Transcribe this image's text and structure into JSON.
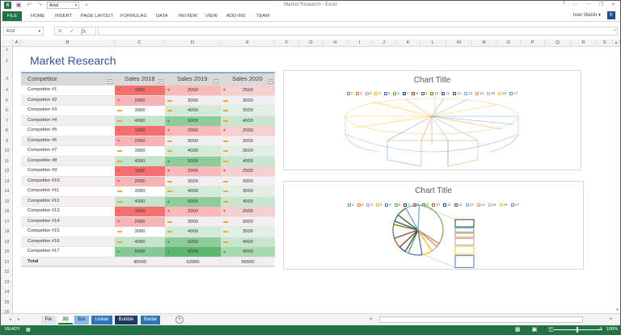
{
  "window": {
    "title": "Market Research - Excel",
    "controls": [
      "?",
      "▭",
      "—",
      "❐",
      "✕"
    ]
  },
  "qat": {
    "font_name": "Arial"
  },
  "ribbon": {
    "tabs": [
      "FILE",
      "HOME",
      "INSERT",
      "PAGE LAYOUT",
      "FORMULAS",
      "DATA",
      "REVIEW",
      "VIEW",
      "ADD-INS",
      "TEAM"
    ],
    "user_name": "Ivan Walsh",
    "user_initial": "K"
  },
  "formula_bar": {
    "name_box": "R19",
    "formula": ""
  },
  "columns": [
    "A",
    "B",
    "C",
    "D",
    "E",
    "F",
    "G",
    "H",
    "I",
    "J",
    "K",
    "L",
    "M",
    "N",
    "O",
    "P",
    "Q",
    "R",
    "S"
  ],
  "rows": [
    "1",
    "2",
    "3",
    "4",
    "5",
    "6",
    "7",
    "8",
    "9",
    "10",
    "11",
    "12",
    "13",
    "14",
    "15",
    "16",
    "17",
    "18",
    "19",
    "20",
    "21",
    "22",
    "23",
    "24",
    "25",
    "26"
  ],
  "sheet": {
    "title": "Market Research",
    "headers": [
      "Competitor",
      "Sales 2018",
      "Sales 2019",
      "Sales 2020"
    ],
    "data": [
      {
        "name": "Competitor #1",
        "v": [
          "1000",
          "2000",
          "2500"
        ]
      },
      {
        "name": "Competitor #2",
        "v": [
          "2000",
          "3000",
          "3000"
        ]
      },
      {
        "name": "Competitor #3",
        "v": [
          "3000",
          "4000",
          "3500"
        ]
      },
      {
        "name": "Competitor #4",
        "v": [
          "4000",
          "5000",
          "4000"
        ]
      },
      {
        "name": "Competitor #5",
        "v": [
          "1000",
          "2000",
          "2500"
        ]
      },
      {
        "name": "Competitor #6",
        "v": [
          "2000",
          "3000",
          "3000"
        ]
      },
      {
        "name": "Competitor #7",
        "v": [
          "3000",
          "4000",
          "3500"
        ]
      },
      {
        "name": "Competitor #8",
        "v": [
          "4000",
          "5000",
          "4000"
        ]
      },
      {
        "name": "Competitor #9",
        "v": [
          "1000",
          "2000",
          "2500"
        ]
      },
      {
        "name": "Competitor #10",
        "v": [
          "2000",
          "3000",
          "3000"
        ]
      },
      {
        "name": "Competitor #11",
        "v": [
          "3000",
          "4000",
          "3500"
        ]
      },
      {
        "name": "Competitor #12",
        "v": [
          "4000",
          "5000",
          "4000"
        ]
      },
      {
        "name": "Competitor #13",
        "v": [
          "1000",
          "2000",
          "2500"
        ]
      },
      {
        "name": "Competitor #14",
        "v": [
          "2000",
          "3000",
          "3000"
        ]
      },
      {
        "name": "Competitor #15",
        "v": [
          "3000",
          "4000",
          "3500"
        ]
      },
      {
        "name": "Competitor #16",
        "v": [
          "4000",
          "5000",
          "4000"
        ]
      },
      {
        "name": "Competitor #17",
        "v": [
          "5000",
          "6000",
          "4500"
        ]
      }
    ],
    "total": {
      "label": "Total",
      "v": [
        "45000",
        "62000",
        "56500"
      ]
    }
  },
  "charts": [
    {
      "title": "Chart Title",
      "type": "3d-pie-wireframe",
      "legend": [
        "1",
        "2",
        "3",
        "4",
        "5",
        "6",
        "7",
        "8",
        "9",
        "10",
        "11",
        "12",
        "13",
        "14",
        "15",
        "16",
        "17"
      ]
    },
    {
      "title": "Chart Title",
      "type": "bar-of-pie",
      "legend": [
        "1",
        "2",
        "3",
        "4",
        "5",
        "6",
        "7",
        "8",
        "9",
        "10",
        "11",
        "12",
        "13",
        "14",
        "15",
        "16",
        "17"
      ]
    }
  ],
  "legend_colors": [
    "#5b9bd5",
    "#ed7d31",
    "#a5a5a5",
    "#ffc000",
    "#4472c4",
    "#70ad47",
    "#264478",
    "#9e480e",
    "#636363",
    "#997300",
    "#255e91",
    "#43682b",
    "#7cafdd",
    "#f1975a",
    "#b7b7b7",
    "#ffcd33",
    "#698ed0"
  ],
  "sheet_tabs": [
    {
      "label": "Pie",
      "bg": "#dce6f1",
      "fg": "#333333"
    },
    {
      "label": "3D",
      "bg": "#ffffff",
      "fg": "#217346",
      "active": true
    },
    {
      "label": "Bar",
      "bg": "#8db4e2",
      "fg": "#1f3864"
    },
    {
      "label": "Linear",
      "bg": "#2e75b6",
      "fg": "#ffffff"
    },
    {
      "label": "Bubble",
      "bg": "#1f3864",
      "fg": "#ffffff"
    },
    {
      "label": "Radar",
      "bg": "#2e75b6",
      "fg": "#ffffff"
    }
  ],
  "status": {
    "ready": "READY",
    "zoom": "100%"
  }
}
